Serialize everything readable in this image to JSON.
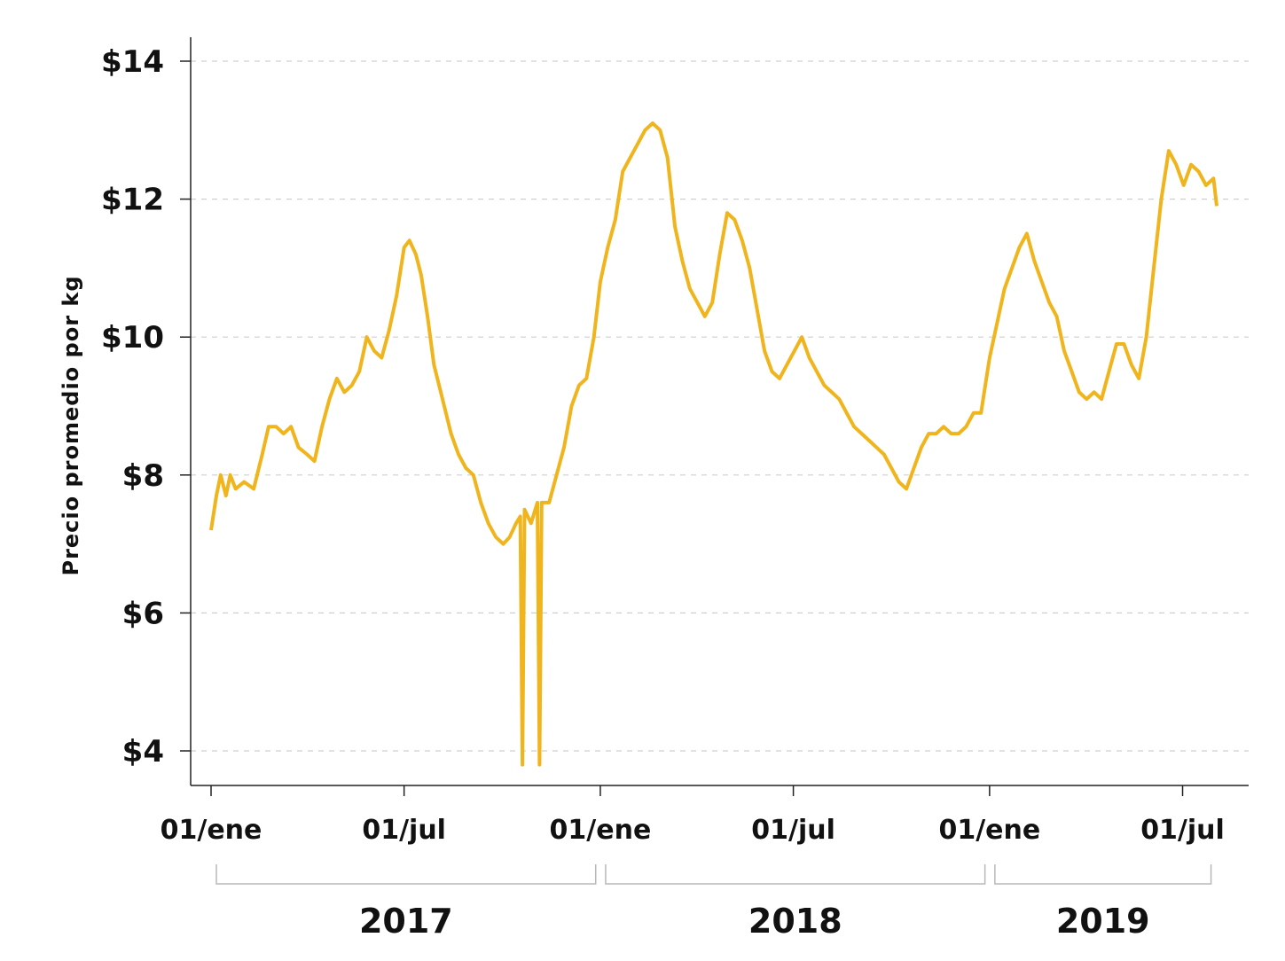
{
  "chart_data": {
    "type": "line",
    "ylabel": "Precio promedio por kg",
    "xlabel": "",
    "ylim": [
      3.7,
      14.4
    ],
    "xlim": [
      "2017-01-01",
      "2019-08-01"
    ],
    "yticks": [
      {
        "value": 4,
        "label": "$4"
      },
      {
        "value": 6,
        "label": "$6"
      },
      {
        "value": 8,
        "label": "$8"
      },
      {
        "value": 10,
        "label": "$10"
      },
      {
        "value": 12,
        "label": "$12"
      },
      {
        "value": 14,
        "label": "$14"
      }
    ],
    "xticks": [
      {
        "date": "2017-01-01",
        "label": "01/ene"
      },
      {
        "date": "2017-07-01",
        "label": "01/jul"
      },
      {
        "date": "2018-01-01",
        "label": "01/ene"
      },
      {
        "date": "2018-07-01",
        "label": "01/jul"
      },
      {
        "date": "2019-01-01",
        "label": "01/ene"
      },
      {
        "date": "2019-07-01",
        "label": "01/jul"
      }
    ],
    "year_groups": [
      {
        "label": "2017",
        "start": "2017-01-01",
        "end": "2017-12-31"
      },
      {
        "label": "2018",
        "start": "2018-01-01",
        "end": "2018-12-31"
      },
      {
        "label": "2019",
        "start": "2019-01-01",
        "end": "2019-07-31"
      }
    ],
    "grid": true,
    "series": [
      {
        "color": "#f0b41c",
        "points": [
          [
            "2017-01-01",
            7.2
          ],
          [
            "2017-01-06",
            7.7
          ],
          [
            "2017-01-10",
            8.0
          ],
          [
            "2017-01-15",
            7.7
          ],
          [
            "2017-01-19",
            8.0
          ],
          [
            "2017-01-24",
            7.8
          ],
          [
            "2017-02-01",
            7.9
          ],
          [
            "2017-02-10",
            7.8
          ],
          [
            "2017-02-18",
            8.3
          ],
          [
            "2017-02-24",
            8.7
          ],
          [
            "2017-03-03",
            8.7
          ],
          [
            "2017-03-10",
            8.6
          ],
          [
            "2017-03-17",
            8.7
          ],
          [
            "2017-03-24",
            8.4
          ],
          [
            "2017-04-01",
            8.3
          ],
          [
            "2017-04-08",
            8.2
          ],
          [
            "2017-04-15",
            8.7
          ],
          [
            "2017-04-22",
            9.1
          ],
          [
            "2017-04-29",
            9.4
          ],
          [
            "2017-05-06",
            9.2
          ],
          [
            "2017-05-13",
            9.3
          ],
          [
            "2017-05-20",
            9.5
          ],
          [
            "2017-05-27",
            10.0
          ],
          [
            "2017-06-03",
            9.8
          ],
          [
            "2017-06-10",
            9.7
          ],
          [
            "2017-06-17",
            10.1
          ],
          [
            "2017-06-24",
            10.6
          ],
          [
            "2017-07-01",
            11.3
          ],
          [
            "2017-07-06",
            11.4
          ],
          [
            "2017-07-12",
            11.2
          ],
          [
            "2017-07-17",
            10.9
          ],
          [
            "2017-07-23",
            10.3
          ],
          [
            "2017-07-29",
            9.6
          ],
          [
            "2017-08-06",
            9.1
          ],
          [
            "2017-08-14",
            8.6
          ],
          [
            "2017-08-21",
            8.3
          ],
          [
            "2017-08-28",
            8.1
          ],
          [
            "2017-09-04",
            8.0
          ],
          [
            "2017-09-11",
            7.6
          ],
          [
            "2017-09-18",
            7.3
          ],
          [
            "2017-09-25",
            7.1
          ],
          [
            "2017-10-02",
            7.0
          ],
          [
            "2017-10-08",
            7.1
          ],
          [
            "2017-10-14",
            7.3
          ],
          [
            "2017-10-18",
            7.4
          ],
          [
            "2017-10-20",
            3.8
          ],
          [
            "2017-10-22",
            7.5
          ],
          [
            "2017-10-28",
            7.3
          ],
          [
            "2017-11-03",
            7.6
          ],
          [
            "2017-11-05",
            3.8
          ],
          [
            "2017-11-07",
            7.6
          ],
          [
            "2017-11-14",
            7.6
          ],
          [
            "2017-11-21",
            8.0
          ],
          [
            "2017-11-28",
            8.4
          ],
          [
            "2017-12-05",
            9.0
          ],
          [
            "2017-12-12",
            9.3
          ],
          [
            "2017-12-19",
            9.4
          ],
          [
            "2017-12-26",
            10.0
          ],
          [
            "2018-01-01",
            10.8
          ],
          [
            "2018-01-08",
            11.3
          ],
          [
            "2018-01-15",
            11.7
          ],
          [
            "2018-01-22",
            12.4
          ],
          [
            "2018-01-29",
            12.6
          ],
          [
            "2018-02-05",
            12.8
          ],
          [
            "2018-02-12",
            13.0
          ],
          [
            "2018-02-19",
            13.1
          ],
          [
            "2018-02-26",
            13.0
          ],
          [
            "2018-03-05",
            12.6
          ],
          [
            "2018-03-12",
            11.6
          ],
          [
            "2018-03-19",
            11.1
          ],
          [
            "2018-03-26",
            10.7
          ],
          [
            "2018-04-02",
            10.5
          ],
          [
            "2018-04-09",
            10.3
          ],
          [
            "2018-04-16",
            10.5
          ],
          [
            "2018-04-23",
            11.2
          ],
          [
            "2018-04-30",
            11.8
          ],
          [
            "2018-05-07",
            11.7
          ],
          [
            "2018-05-14",
            11.4
          ],
          [
            "2018-05-21",
            11.0
          ],
          [
            "2018-05-28",
            10.4
          ],
          [
            "2018-06-04",
            9.8
          ],
          [
            "2018-06-11",
            9.5
          ],
          [
            "2018-06-18",
            9.4
          ],
          [
            "2018-06-25",
            9.6
          ],
          [
            "2018-07-02",
            9.8
          ],
          [
            "2018-07-09",
            10.0
          ],
          [
            "2018-07-16",
            9.7
          ],
          [
            "2018-07-23",
            9.5
          ],
          [
            "2018-07-30",
            9.3
          ],
          [
            "2018-08-06",
            9.2
          ],
          [
            "2018-08-13",
            9.1
          ],
          [
            "2018-08-20",
            8.9
          ],
          [
            "2018-08-27",
            8.7
          ],
          [
            "2018-09-03",
            8.6
          ],
          [
            "2018-09-10",
            8.5
          ],
          [
            "2018-09-17",
            8.4
          ],
          [
            "2018-09-24",
            8.3
          ],
          [
            "2018-10-01",
            8.1
          ],
          [
            "2018-10-08",
            7.9
          ],
          [
            "2018-10-15",
            7.8
          ],
          [
            "2018-10-22",
            8.1
          ],
          [
            "2018-10-29",
            8.4
          ],
          [
            "2018-11-05",
            8.6
          ],
          [
            "2018-11-12",
            8.6
          ],
          [
            "2018-11-19",
            8.7
          ],
          [
            "2018-11-26",
            8.6
          ],
          [
            "2018-12-03",
            8.6
          ],
          [
            "2018-12-10",
            8.7
          ],
          [
            "2018-12-17",
            8.9
          ],
          [
            "2018-12-24",
            8.9
          ],
          [
            "2019-01-01",
            9.7
          ],
          [
            "2019-01-08",
            10.2
          ],
          [
            "2019-01-15",
            10.7
          ],
          [
            "2019-01-22",
            11.0
          ],
          [
            "2019-01-29",
            11.3
          ],
          [
            "2019-02-05",
            11.5
          ],
          [
            "2019-02-12",
            11.1
          ],
          [
            "2019-02-19",
            10.8
          ],
          [
            "2019-02-26",
            10.5
          ],
          [
            "2019-03-05",
            10.3
          ],
          [
            "2019-03-12",
            9.8
          ],
          [
            "2019-03-19",
            9.5
          ],
          [
            "2019-03-26",
            9.2
          ],
          [
            "2019-04-02",
            9.1
          ],
          [
            "2019-04-09",
            9.2
          ],
          [
            "2019-04-16",
            9.1
          ],
          [
            "2019-04-23",
            9.5
          ],
          [
            "2019-04-30",
            9.9
          ],
          [
            "2019-05-07",
            9.9
          ],
          [
            "2019-05-14",
            9.6
          ],
          [
            "2019-05-21",
            9.4
          ],
          [
            "2019-05-28",
            10.0
          ],
          [
            "2019-06-04",
            11.0
          ],
          [
            "2019-06-11",
            12.0
          ],
          [
            "2019-06-18",
            12.7
          ],
          [
            "2019-06-25",
            12.5
          ],
          [
            "2019-07-02",
            12.2
          ],
          [
            "2019-07-09",
            12.5
          ],
          [
            "2019-07-16",
            12.4
          ],
          [
            "2019-07-23",
            12.2
          ],
          [
            "2019-07-30",
            12.3
          ],
          [
            "2019-08-02",
            11.9
          ]
        ]
      }
    ]
  }
}
